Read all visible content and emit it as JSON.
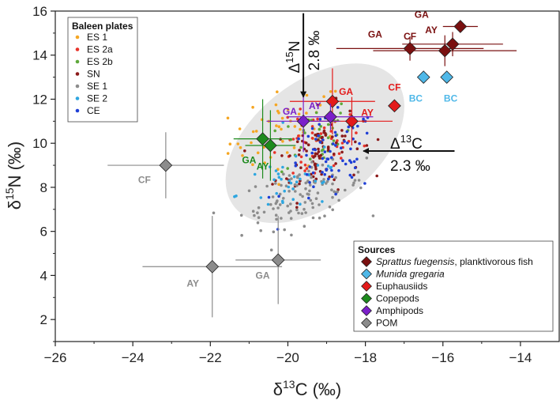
{
  "chart_data": {
    "type": "scatter",
    "xlabel": "δ13C (‰)",
    "ylabel": "δ15N (‰)",
    "xlim": [
      -26,
      -13
    ],
    "ylim": [
      1,
      16
    ],
    "xticks": [
      -26,
      -24,
      -22,
      -20,
      -18,
      -16,
      -14
    ],
    "yticks": [
      2,
      4,
      6,
      8,
      10,
      12,
      14,
      16
    ],
    "xtick_labels": [
      "−26",
      "−24",
      "−22",
      "−20",
      "−18",
      "−16",
      "−14"
    ],
    "ytick_labels": [
      "2",
      "4",
      "6",
      "8",
      "10",
      "12",
      "14",
      "16"
    ],
    "baleen_legend": {
      "title": "Baleen plates",
      "placement": "top-left",
      "items": [
        {
          "name": "ES 1",
          "color": "#f5a623"
        },
        {
          "name": "ES 2a",
          "color": "#e8332a"
        },
        {
          "name": "ES 2b",
          "color": "#5ea83a"
        },
        {
          "name": "SN",
          "color": "#8b1a1a"
        },
        {
          "name": "SE 1",
          "color": "#8c8c8c"
        },
        {
          "name": "SE 2",
          "color": "#2ea6e0"
        },
        {
          "name": "CE",
          "color": "#1f3fd6"
        }
      ]
    },
    "baleen_clusters": [
      {
        "name": "ES 1",
        "color": "#f5a623",
        "n": 55,
        "cx": -20.0,
        "cy": 10.6,
        "sx": 0.75,
        "sy": 0.95,
        "corr": 0.3
      },
      {
        "name": "ES 2a",
        "color": "#e8332a",
        "n": 45,
        "cx": -19.3,
        "cy": 9.8,
        "sx": 0.6,
        "sy": 0.8,
        "corr": 0.3
      },
      {
        "name": "ES 2b",
        "color": "#5ea83a",
        "n": 40,
        "cx": -19.3,
        "cy": 10.3,
        "sx": 0.45,
        "sy": 0.8,
        "corr": 0.3
      },
      {
        "name": "SN",
        "color": "#8b1a1a",
        "n": 90,
        "cx": -19.2,
        "cy": 9.6,
        "sx": 0.55,
        "sy": 1.0,
        "corr": 0.3
      },
      {
        "name": "SE 1",
        "color": "#8c8c8c",
        "n": 110,
        "cx": -19.6,
        "cy": 7.6,
        "sx": 0.8,
        "sy": 0.7,
        "corr": 0.45
      },
      {
        "name": "SE 2",
        "color": "#2ea6e0",
        "n": 40,
        "cx": -19.8,
        "cy": 8.4,
        "sx": 0.75,
        "sy": 0.9,
        "corr": 0.4
      },
      {
        "name": "CE",
        "color": "#1f3fd6",
        "n": 70,
        "cx": -18.9,
        "cy": 9.2,
        "sx": 0.6,
        "sy": 1.0,
        "corr": 0.3
      }
    ],
    "niche_ellipse": {
      "cx": -19.3,
      "cy": 10.0,
      "color": "#e5e5e5"
    },
    "sources_legend": {
      "title": "Sources",
      "placement": "bottom-right",
      "items": [
        {
          "name": "Sprattus fuegensis",
          "suffix": ", planktivorous fish",
          "italic": true,
          "color": "#7a1010"
        },
        {
          "name": "Munida gregaria",
          "suffix": "",
          "italic": true,
          "color": "#4fb8e8"
        },
        {
          "name": "Euphausiids",
          "suffix": "",
          "italic": false,
          "color": "#e31b1b"
        },
        {
          "name": "Copepods",
          "suffix": "",
          "italic": false,
          "color": "#1d8a1d"
        },
        {
          "name": "Amphipods",
          "suffix": "",
          "italic": false,
          "color": "#7b1fc9"
        },
        {
          "name": "POM",
          "suffix": "",
          "italic": false,
          "color": "#8c8c8c"
        }
      ]
    },
    "sources": [
      {
        "group": "Sprattus fuegensis",
        "label": "GA",
        "x": -15.55,
        "y": 15.3,
        "xerr": 0.45,
        "yerr": 0.0,
        "color": "#7a1010",
        "label_dx": -1.0,
        "label_dy": 0.4
      },
      {
        "group": "Sprattus fuegensis",
        "label": "GA",
        "x": -16.85,
        "y": 14.3,
        "xerr": 1.9,
        "yerr": 0.55,
        "color": "#7a1010",
        "label_dx": -0.9,
        "label_dy": 0.5
      },
      {
        "group": "Sprattus fuegensis",
        "label": "AY",
        "x": -15.75,
        "y": 14.5,
        "xerr": 1.3,
        "yerr": 0.55,
        "color": "#7a1010",
        "label_dx": -0.55,
        "label_dy": 0.5
      },
      {
        "group": "Sprattus fuegensis",
        "label": "CF",
        "x": -15.95,
        "y": 14.2,
        "xerr": 1.85,
        "yerr": 0.7,
        "color": "#7a1010",
        "label_dx": -0.9,
        "label_dy": 0.5
      },
      {
        "group": "Munida gregaria",
        "label": "BC",
        "x": -16.5,
        "y": 13.0,
        "xerr": 0.0,
        "yerr": 0.0,
        "color": "#4fb8e8",
        "label_dx": -0.2,
        "label_dy": -1.1
      },
      {
        "group": "Munida gregaria",
        "label": "BC",
        "x": -15.9,
        "y": 13.0,
        "xerr": 0.0,
        "yerr": 0.0,
        "color": "#4fb8e8",
        "label_dx": 0.1,
        "label_dy": -1.1
      },
      {
        "group": "Euphausiids",
        "label": "CF",
        "x": -17.25,
        "y": 11.7,
        "xerr": 0.0,
        "yerr": 0.0,
        "color": "#e31b1b",
        "label_dx": 0.0,
        "label_dy": 0.7
      },
      {
        "group": "Euphausiids",
        "label": "GA",
        "x": -18.85,
        "y": 11.9,
        "xerr": 1.1,
        "yerr": 1.5,
        "color": "#e31b1b",
        "label_dx": 0.35,
        "label_dy": 0.3
      },
      {
        "group": "Euphausiids",
        "label": "AY",
        "x": -18.35,
        "y": 11.0,
        "xerr": 1.05,
        "yerr": 1.1,
        "color": "#e31b1b",
        "label_dx": 0.4,
        "label_dy": 0.25
      },
      {
        "group": "Copepods",
        "label": "GA",
        "x": -20.65,
        "y": 10.2,
        "xerr": 0.75,
        "yerr": 1.8,
        "color": "#1d8a1d",
        "label_dx": -0.35,
        "label_dy": -1.1
      },
      {
        "group": "Copepods",
        "label": "AY",
        "x": -20.45,
        "y": 9.9,
        "xerr": 0.65,
        "yerr": 1.6,
        "color": "#1d8a1d",
        "label_dx": -0.2,
        "label_dy": -1.1
      },
      {
        "group": "Amphipods",
        "label": "GA",
        "x": -19.6,
        "y": 11.0,
        "xerr": 0.95,
        "yerr": 1.4,
        "color": "#7b1fc9",
        "label_dx": -0.35,
        "label_dy": 0.3
      },
      {
        "group": "Amphipods",
        "label": "AY",
        "x": -18.9,
        "y": 11.2,
        "xerr": 1.1,
        "yerr": 0.6,
        "color": "#7b1fc9",
        "label_dx": -0.4,
        "label_dy": 0.35
      },
      {
        "group": "POM",
        "label": "CF",
        "x": -23.15,
        "y": 9.0,
        "xerr": 1.5,
        "yerr": 1.5,
        "color": "#8c8c8c",
        "label_dx": -0.55,
        "label_dy": -0.8
      },
      {
        "group": "POM",
        "label": "AY",
        "x": -21.95,
        "y": 4.4,
        "xerr": 1.8,
        "yerr": 2.3,
        "color": "#8c8c8c",
        "label_dx": -0.5,
        "label_dy": -0.9
      },
      {
        "group": "POM",
        "label": "GA",
        "x": -20.25,
        "y": 4.7,
        "xerr": 1.1,
        "yerr": 2.0,
        "color": "#8c8c8c",
        "label_dx": -0.4,
        "label_dy": -0.85
      }
    ],
    "annotations": [
      {
        "name": "delta-n",
        "prefix": "Δ",
        "sup": "15",
        "main": "N",
        "value": "2.8 ‰",
        "arrow_x": -19.6,
        "arrow_from_y": 15.9,
        "arrow_to_y": 12.1
      },
      {
        "name": "delta-c",
        "prefix": "Δ",
        "sup": "13",
        "main": "C",
        "value": "2.3 ‰",
        "arrow_y": 9.65,
        "arrow_from_x": -15.7,
        "arrow_to_x": -18.05
      }
    ]
  }
}
